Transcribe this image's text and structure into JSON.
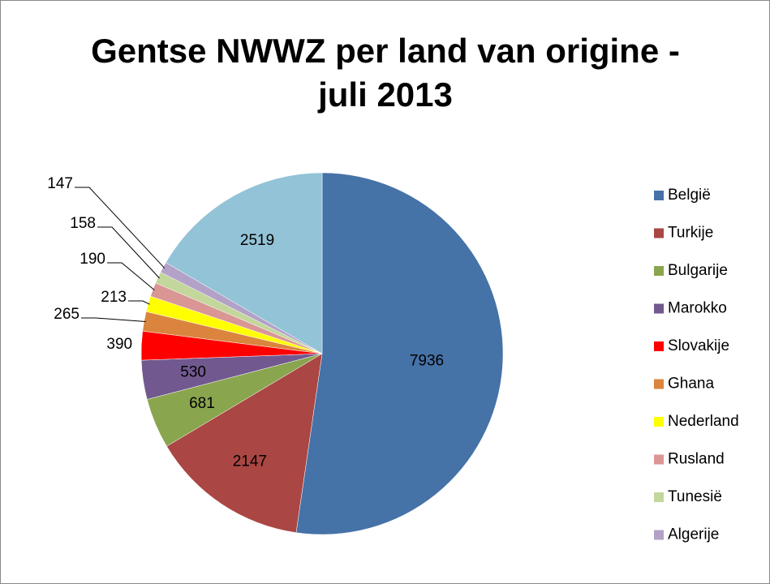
{
  "chart_data": {
    "type": "pie",
    "title": "Gentse NWWZ per land van origine - juli 2013",
    "categories": [
      "België",
      "Turkije",
      "Bulgarije",
      "Marokko",
      "Slovakije",
      "Ghana",
      "Nederland",
      "Rusland",
      "Tunesië",
      "Algerije",
      null
    ],
    "values": [
      7936,
      2147,
      681,
      530,
      390,
      265,
      213,
      190,
      158,
      147,
      2519
    ],
    "colors": [
      "#4572a7",
      "#aa4643",
      "#89a54e",
      "#71588f",
      "#ff0000",
      "#db843d",
      "#ffff00",
      "#d99694",
      "#c3d69b",
      "#b3a2c7",
      "#93c3d7"
    ],
    "legend": "right"
  }
}
